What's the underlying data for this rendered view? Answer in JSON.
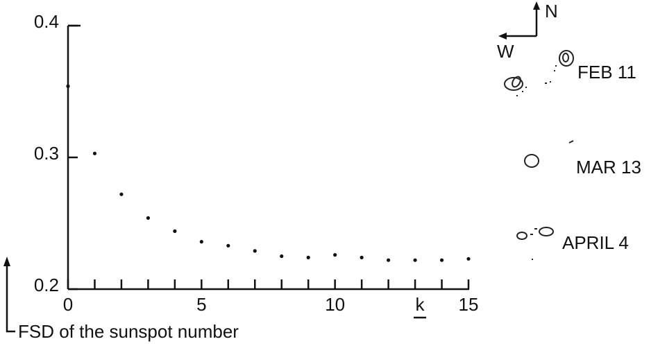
{
  "chart_data": {
    "type": "scatter",
    "y_label": "FSD of the sunspot number",
    "x_label": "k",
    "x": [
      0,
      1,
      2,
      3,
      4,
      5,
      6,
      7,
      8,
      9,
      10,
      11,
      12,
      13,
      14,
      15
    ],
    "series": [
      {
        "color": "#111111",
        "values": [
          0.354,
          0.303,
          0.272,
          0.254,
          0.244,
          0.236,
          0.233,
          0.229,
          0.225,
          0.224,
          0.226,
          0.224,
          0.222,
          0.222,
          0.222,
          0.223
        ]
      }
    ],
    "xlim": [
      0,
      15
    ],
    "xticks": [
      0,
      5,
      10,
      15
    ],
    "xminorticks": [
      1,
      2,
      3,
      4,
      6,
      7,
      8,
      9,
      11,
      12,
      13,
      14
    ],
    "ylim": [
      0.2,
      0.4
    ],
    "yticks": [
      0.2,
      0.3,
      0.4
    ],
    "annotations": {
      "north": "N",
      "west": "W",
      "dates": [
        "FEB 11",
        "MAR 13",
        "APRIL 4"
      ]
    }
  }
}
